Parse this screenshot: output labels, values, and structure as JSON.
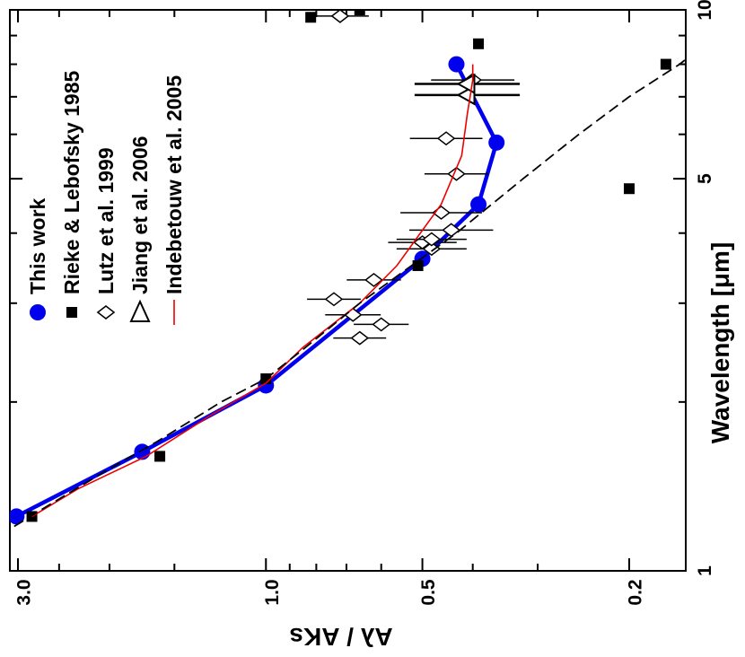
{
  "chart_data": {
    "type": "scatter",
    "orientation": "rotated-90-clockwise",
    "x_axis": {
      "label": "Wavelength [μm]",
      "scale": "log",
      "range": [
        1,
        10
      ],
      "tick_labels": [
        {
          "value": 1,
          "label": "1"
        },
        {
          "value": 5,
          "label": "5"
        },
        {
          "value": 10,
          "label": "10"
        }
      ],
      "minor_ticks": [
        2,
        3,
        4,
        6,
        7,
        8,
        9
      ]
    },
    "y_axis": {
      "label": "Aλ / AKs",
      "scale": "log",
      "range": [
        0.15,
        3.1
      ],
      "tick_labels": [
        {
          "value": 3.0,
          "label": "3.0"
        },
        {
          "value": 1.0,
          "label": "1.0"
        },
        {
          "value": 0.5,
          "label": "0.5"
        },
        {
          "value": 0.2,
          "label": "0.2"
        }
      ],
      "minor_ticks": [
        2.5,
        2.0,
        1.5,
        0.9,
        0.8,
        0.7,
        0.6,
        0.4,
        0.3
      ]
    },
    "legend": {
      "placement": "top-left",
      "entries": [
        {
          "label": "This work",
          "marker": "filled-circle",
          "color": "#0000ee"
        },
        {
          "label": "Rieke & Lebofsky 1985",
          "marker": "filled-square",
          "color": "#000000"
        },
        {
          "label": "Lutz et al. 1999",
          "marker": "open-diamond",
          "color": "#000000"
        },
        {
          "label": "Jiang et al. 2006",
          "marker": "open-triangle",
          "color": "#000000"
        },
        {
          "label": "Indebetouw et al. 2005",
          "marker": "line",
          "color": "#ee0000"
        }
      ]
    },
    "series": [
      {
        "name": "This work",
        "style": "line+markers",
        "color": "#0000ee",
        "points": [
          {
            "x": 1.25,
            "y": 3.02
          },
          {
            "x": 1.63,
            "y": 1.73
          },
          {
            "x": 2.14,
            "y": 1.0
          },
          {
            "x": 3.6,
            "y": 0.5
          },
          {
            "x": 4.5,
            "y": 0.39
          },
          {
            "x": 5.8,
            "y": 0.36
          },
          {
            "x": 8.0,
            "y": 0.43
          }
        ]
      },
      {
        "name": "Rieke & Lebofsky 1985",
        "style": "markers",
        "color": "#000000",
        "points": [
          {
            "x": 1.25,
            "y": 2.82
          },
          {
            "x": 1.6,
            "y": 1.6
          },
          {
            "x": 2.2,
            "y": 1.0
          },
          {
            "x": 3.5,
            "y": 0.51
          },
          {
            "x": 4.8,
            "y": 0.2
          },
          {
            "x": 8.0,
            "y": 0.17
          },
          {
            "x": 8.7,
            "y": 0.39
          },
          {
            "x": 9.7,
            "y": 0.82
          },
          {
            "x": 10.0,
            "y": 0.66
          }
        ]
      },
      {
        "name": "Lutz et al. 1999",
        "style": "markers+xerr",
        "color": "#000000",
        "points": [
          {
            "x": 2.6,
            "y": 0.66,
            "xerr": 0.03
          },
          {
            "x": 2.75,
            "y": 0.6,
            "xerr": 0.03
          },
          {
            "x": 2.86,
            "y": 0.68,
            "xerr": 0.035
          },
          {
            "x": 3.05,
            "y": 0.74,
            "xerr": 0.035
          },
          {
            "x": 3.3,
            "y": 0.62,
            "xerr": 0.03
          },
          {
            "x": 3.75,
            "y": 0.48,
            "xerr": 0.04
          },
          {
            "x": 3.85,
            "y": 0.5,
            "xerr": 0.04
          },
          {
            "x": 3.9,
            "y": 0.48,
            "xerr": 0.04
          },
          {
            "x": 4.05,
            "y": 0.44,
            "xerr": 0.05
          },
          {
            "x": 4.35,
            "y": 0.46,
            "xerr": 0.05
          },
          {
            "x": 5.1,
            "y": 0.43,
            "xerr": 0.03
          },
          {
            "x": 5.9,
            "y": 0.45,
            "xerr": 0.04
          },
          {
            "x": 7.5,
            "y": 0.4,
            "xerr": 0.045
          },
          {
            "x": 9.75,
            "y": 0.72,
            "xerr": 0.04
          }
        ]
      },
      {
        "name": "Jiang et al. 2006",
        "style": "markers+xerr",
        "color": "#000000",
        "points": [
          {
            "x": 7.05,
            "y": 0.41,
            "xerr": 0.04
          },
          {
            "x": 7.38,
            "y": 0.41,
            "xerr": 0.04
          }
        ]
      },
      {
        "name": "Indebetouw et al. 2005",
        "style": "line",
        "color": "#ee0000",
        "points": [
          {
            "x": 1.25,
            "y": 2.82
          },
          {
            "x": 1.4,
            "y": 2.3
          },
          {
            "x": 1.6,
            "y": 1.7
          },
          {
            "x": 1.9,
            "y": 1.27
          },
          {
            "x": 2.16,
            "y": 1.0
          },
          {
            "x": 2.5,
            "y": 0.85
          },
          {
            "x": 3.0,
            "y": 0.66
          },
          {
            "x": 3.5,
            "y": 0.56
          },
          {
            "x": 4.5,
            "y": 0.46
          },
          {
            "x": 5.5,
            "y": 0.42
          },
          {
            "x": 6.5,
            "y": 0.41
          },
          {
            "x": 7.5,
            "y": 0.4
          },
          {
            "x": 8.0,
            "y": 0.4
          }
        ]
      },
      {
        "name": "",
        "style": "dashed-line",
        "color": "#000000",
        "points": [
          {
            "x": 1.2,
            "y": 3.05
          },
          {
            "x": 1.3,
            "y": 2.65
          },
          {
            "x": 1.5,
            "y": 2.05
          },
          {
            "x": 1.7,
            "y": 1.62
          },
          {
            "x": 2.0,
            "y": 1.22
          },
          {
            "x": 2.2,
            "y": 1.0
          },
          {
            "x": 2.5,
            "y": 0.84
          },
          {
            "x": 3.0,
            "y": 0.66
          },
          {
            "x": 4.0,
            "y": 0.43
          },
          {
            "x": 5.0,
            "y": 0.32
          },
          {
            "x": 6.0,
            "y": 0.25
          },
          {
            "x": 7.0,
            "y": 0.2
          },
          {
            "x": 8.0,
            "y": 0.16
          },
          {
            "x": 8.6,
            "y": 0.145
          }
        ]
      }
    ]
  }
}
